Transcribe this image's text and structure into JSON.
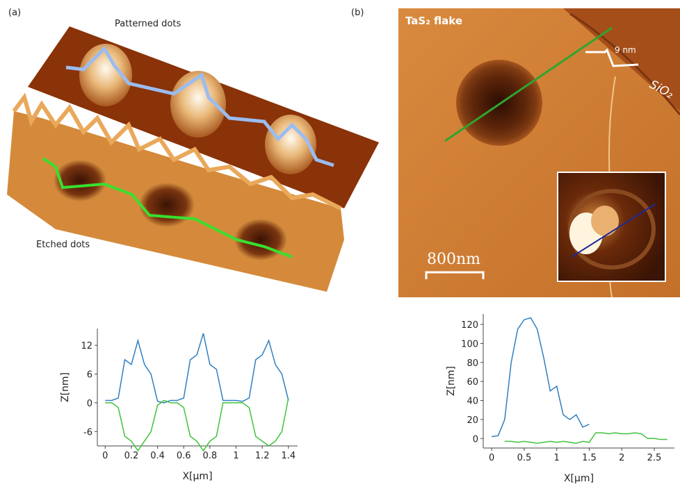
{
  "panels": [
    {
      "label": "(a)",
      "annotations": [
        "Patterned dots",
        "Etched dots"
      ]
    },
    {
      "label": "(b)",
      "annotations": [
        "TaS₂ flake",
        "9 nm",
        "SiO₂",
        "800nm"
      ]
    }
  ],
  "chart_data": [
    {
      "type": "line",
      "xlabel": "X[µm]",
      "ylabel": "Z[nm]",
      "x": [
        0,
        0.05,
        0.1,
        0.15,
        0.2,
        0.25,
        0.3,
        0.35,
        0.4,
        0.45,
        0.5,
        0.55,
        0.6,
        0.65,
        0.7,
        0.75,
        0.8,
        0.85,
        0.9,
        0.95,
        1.0,
        1.05,
        1.1,
        1.15,
        1.2,
        1.25,
        1.3,
        1.35,
        1.4
      ],
      "series": [
        {
          "color": "#2f7fc1",
          "values": [
            0.5,
            0.5,
            1,
            9,
            8,
            13,
            8,
            6,
            0.3,
            0,
            0.5,
            0.5,
            1,
            9,
            10,
            14.5,
            8,
            7,
            0.5,
            0.5,
            0.5,
            0.3,
            1,
            9,
            10,
            13,
            8,
            6,
            0.5
          ]
        },
        {
          "color": "#3fc23a",
          "values": [
            0,
            0,
            -1,
            -7,
            -8,
            -10,
            -8,
            -6,
            -0.5,
            0.5,
            0,
            0,
            -1,
            -7,
            -8,
            -10,
            -8,
            -7,
            0,
            0,
            0,
            0,
            -1,
            -7,
            -8,
            -9,
            -8,
            -6,
            1
          ]
        }
      ],
      "xlim": [
        -0.06,
        1.47
      ],
      "xticks": [
        0,
        0.2,
        0.4,
        0.6,
        0.8,
        1,
        1.2,
        1.4
      ],
      "ylim": [
        -9,
        15.5
      ],
      "yticks": [
        -6,
        0,
        6,
        12
      ]
    },
    {
      "type": "line",
      "xlabel": "X[µm]",
      "ylabel": "Z[nm]",
      "x": [
        0,
        0.1,
        0.2,
        0.3,
        0.4,
        0.5,
        0.6,
        0.7,
        0.8,
        0.9,
        1.0,
        1.1,
        1.2,
        1.3,
        1.4,
        1.5,
        1.6,
        1.7,
        1.8,
        1.9,
        2.0,
        2.1,
        2.2,
        2.3,
        2.4,
        2.5,
        2.6,
        2.7
      ],
      "series": [
        {
          "color": "#2f7fc1",
          "values": [
            2,
            3,
            20,
            80,
            115,
            125,
            127,
            115,
            85,
            50,
            55,
            25,
            20,
            25,
            12,
            15,
            null,
            null,
            null,
            null,
            null,
            null,
            null,
            null,
            null,
            null,
            null,
            null
          ]
        },
        {
          "color": "#3fc23a",
          "values": [
            null,
            null,
            -3,
            -3,
            -4,
            -3,
            -4,
            -5,
            -4,
            -3,
            -4,
            -3,
            -4,
            -5,
            -3,
            -4,
            6,
            6,
            5,
            6,
            5,
            5,
            6,
            5,
            0,
            0,
            -1,
            -1
          ]
        }
      ],
      "xlim": [
        -0.13,
        2.81
      ],
      "xticks": [
        0,
        0.5,
        1,
        1.5,
        2,
        2.5
      ],
      "ylim": [
        -10,
        131
      ],
      "yticks": [
        0,
        20,
        40,
        60,
        80,
        100,
        120
      ]
    }
  ]
}
